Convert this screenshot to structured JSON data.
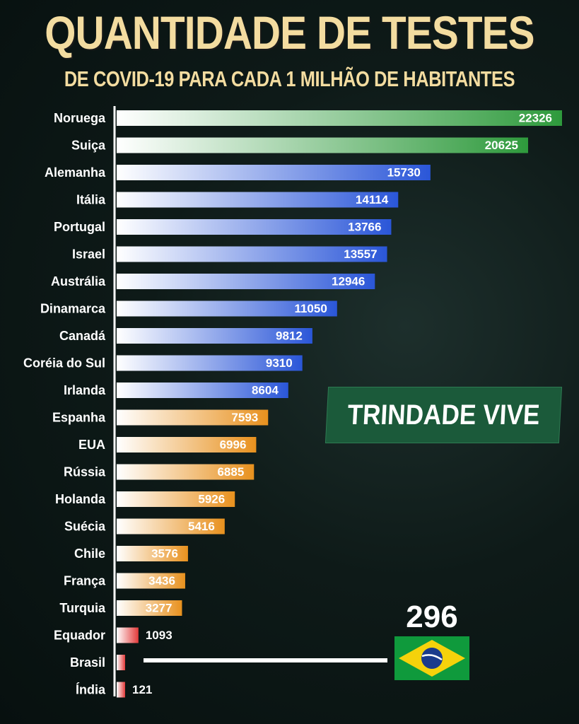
{
  "title": "QUANTIDADE DE TESTES",
  "subtitle": "DE COVID-19 PARA CADA 1 MILHÃO DE HABITANTES",
  "badge": "TRINDADE VIVE",
  "chart_data": {
    "type": "bar",
    "orientation": "horizontal",
    "title": "QUANTIDADE DE TESTES",
    "subtitle": "DE COVID-19 PARA CADA 1 MILHÃO DE HABITANTES",
    "categories": [
      "Noruega",
      "Suiça",
      "Alemanha",
      "Itália",
      "Portugal",
      "Israel",
      "Austrália",
      "Dinamarca",
      "Canadá",
      "Coréia do Sul",
      "Irlanda",
      "Espanha",
      "EUA",
      "Rússia",
      "Holanda",
      "Suécia",
      "Chile",
      "França",
      "Turquia",
      "Equador",
      "Brasil",
      "Índia"
    ],
    "values": [
      22326,
      20625,
      15730,
      14114,
      13766,
      13557,
      12946,
      11050,
      9812,
      9310,
      8604,
      7593,
      6996,
      6885,
      5926,
      5416,
      3576,
      3436,
      3277,
      1093,
      296,
      121
    ],
    "value_labels": [
      "22326",
      "20625",
      "15730",
      "14114",
      "13766",
      "13557",
      "12946",
      "11050",
      "9812",
      "9310",
      "8604",
      "7593",
      "6996",
      "6885",
      "5926",
      "5416",
      "3576",
      "3436",
      "3277",
      "1093",
      "",
      "121"
    ],
    "groups": [
      "green",
      "green",
      "blue",
      "blue",
      "blue",
      "blue",
      "blue",
      "blue",
      "blue",
      "blue",
      "blue",
      "orange",
      "orange",
      "orange",
      "orange",
      "orange",
      "orange",
      "orange",
      "orange",
      "red",
      "red",
      "red"
    ],
    "colors": {
      "green": "#2e9a3c",
      "blue": "#2a56d8",
      "orange": "#e8911e",
      "red": "#e23a3a"
    },
    "highlight": {
      "category": "Brasil",
      "value_label": "296",
      "icon": "brazil-flag-icon"
    },
    "grid": false,
    "legend": "none"
  }
}
